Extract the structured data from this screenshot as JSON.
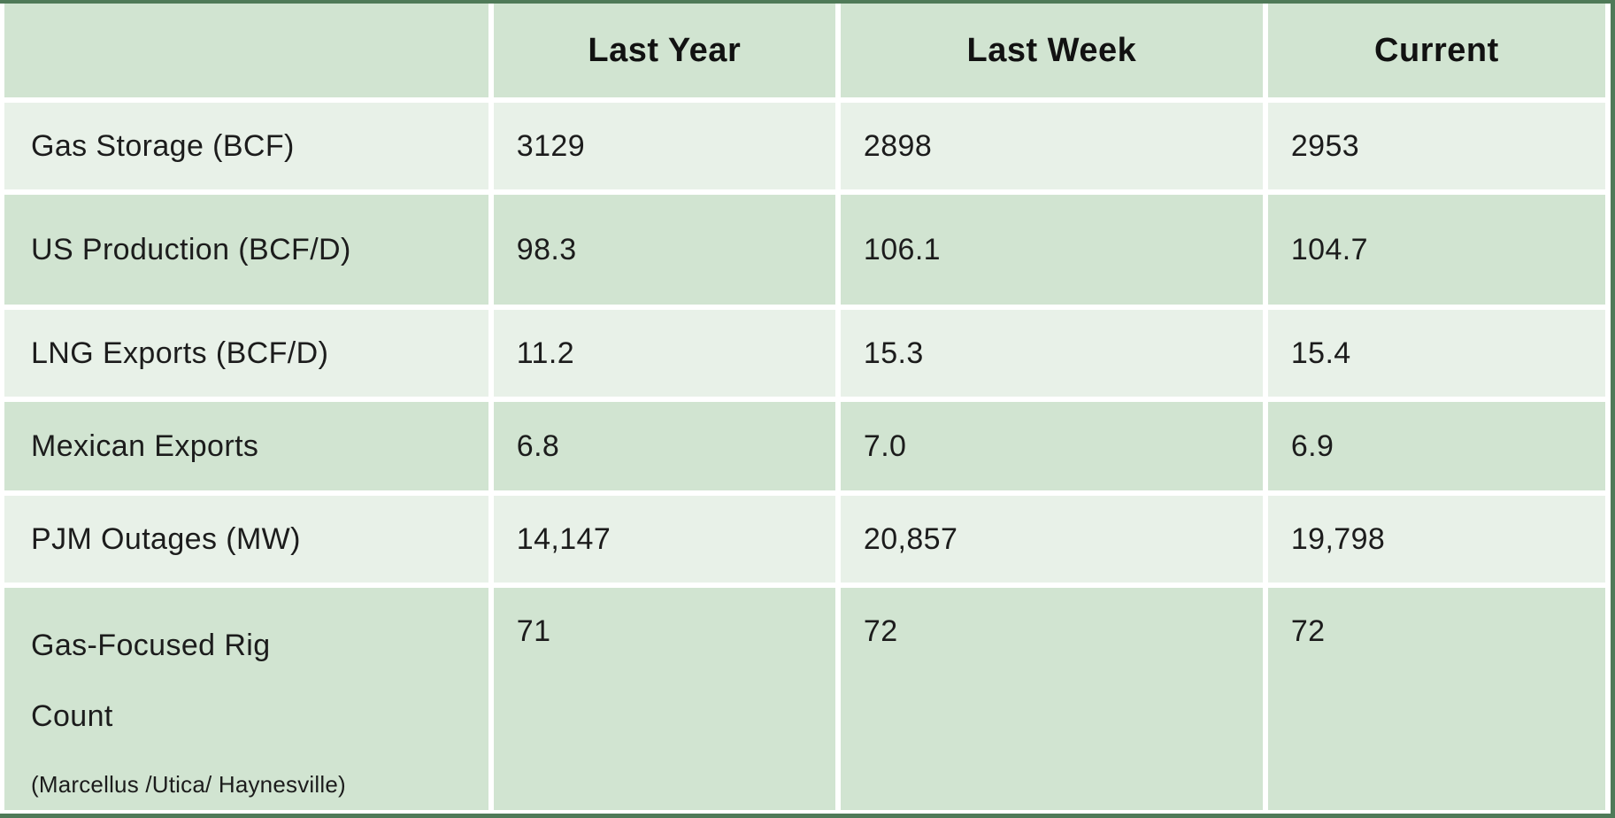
{
  "table": {
    "columns": [
      "",
      "Last Year",
      "Last Week",
      "Current"
    ],
    "rows": [
      {
        "label": "Gas Storage (BCF)",
        "values": [
          "3129",
          "2898",
          "2953"
        ]
      },
      {
        "label": "US Production (BCF/D)",
        "values": [
          "98.3",
          "106.1",
          "104.7"
        ]
      },
      {
        "label": "LNG Exports (BCF/D)",
        "values": [
          "11.2",
          "15.3",
          "15.4"
        ]
      },
      {
        "label": "Mexican Exports",
        "values": [
          "6.8",
          "7.0",
          "6.9"
        ]
      },
      {
        "label": "PJM Outages (MW)",
        "values": [
          "14,147",
          "20,857",
          "19,798"
        ]
      },
      {
        "label": "Gas-Focused Rig Count",
        "label_line1": "Gas-Focused Rig",
        "label_line2": "Count",
        "sublabel": "(Marcellus /Utica/ Haynesville)",
        "values": [
          "71",
          "72",
          "72"
        ]
      }
    ],
    "colors": {
      "outer_border": "#4f7a58",
      "row_medium_green": "#d1e4d1",
      "row_light_green": "#e8f1e8",
      "grid_gap": "#ffffff",
      "text": "#1c1c1c"
    }
  },
  "chart_data": {
    "type": "table",
    "title": "",
    "columns": [
      "",
      "Last Year",
      "Last Week",
      "Current"
    ],
    "rows": [
      [
        "Gas Storage (BCF)",
        3129,
        2898,
        2953
      ],
      [
        "US Production (BCF/D)",
        98.3,
        106.1,
        104.7
      ],
      [
        "LNG Exports (BCF/D)",
        11.2,
        15.3,
        15.4
      ],
      [
        "Mexican Exports",
        6.8,
        7.0,
        6.9
      ],
      [
        "PJM Outages (MW)",
        14147,
        20857,
        19798
      ],
      [
        "Gas-Focused Rig Count (Marcellus /Utica/ Haynesville)",
        71,
        72,
        72
      ]
    ],
    "layout_hints": {
      "header_row_shaded": true,
      "alternating_row_shading": [
        "light",
        "medium"
      ],
      "gridlines": "white gaps between cells",
      "outer_border_sides": [
        "top",
        "right",
        "bottom"
      ]
    }
  }
}
